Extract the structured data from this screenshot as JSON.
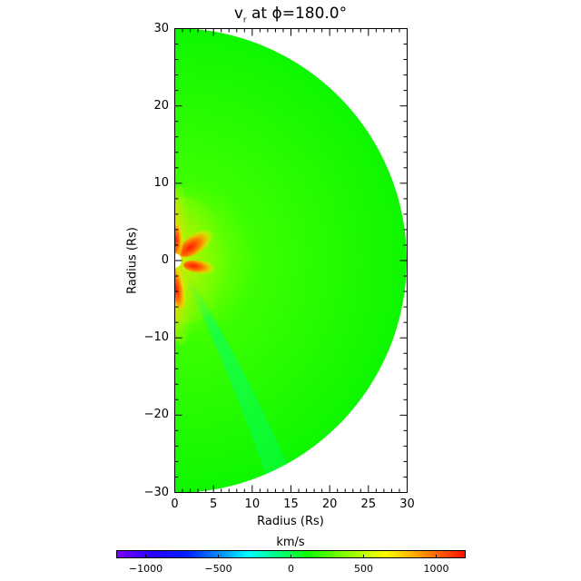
{
  "chart_data": {
    "type": "heatmap",
    "subtype": "polar-meridional-slice",
    "title": "v_r at φ=180.0°",
    "title_display": "vᵣ at ϕ=180.0°",
    "xlabel": "Radius (Rs)",
    "ylabel": "Radius (Rs)",
    "xlim": [
      0,
      30
    ],
    "ylim": [
      -30,
      30
    ],
    "x_ticks": [
      0,
      5,
      10,
      15,
      20,
      25,
      30
    ],
    "y_ticks": [
      -30,
      -20,
      -10,
      0,
      10,
      20,
      30
    ],
    "x_minor_tick_step": 1,
    "y_minor_tick_step": 2,
    "domain_shape": "half-disk, radius 30 Rs, centered at origin, right half",
    "inner_boundary_radius_rs": 1,
    "colorbar": {
      "label": "km/s",
      "range": [
        -1200,
        1200
      ],
      "ticks": [
        -1000,
        -500,
        0,
        500,
        1000
      ],
      "colormap": [
        "#7f00ff",
        "#0000ff",
        "#00ffff",
        "#00ff00",
        "#ffff00",
        "#ff0000"
      ],
      "orientation": "horizontal"
    },
    "features": [
      {
        "description": "background solar wind",
        "approx_value_kms": 200,
        "color": "#22ff00"
      },
      {
        "description": "high-speed lobe upper-left near Sun, r≈1-5 Rs, lat≈+30°",
        "approx_value_kms": 1100
      },
      {
        "description": "high-speed lobe equatorial, r≈1.5-4 Rs, just below equator",
        "approx_value_kms": 1100
      },
      {
        "description": "high-speed lobe along -y axis, r≈1-6 Rs",
        "approx_value_kms": 1000
      },
      {
        "description": "high-speed region along +y axis, r≈1-5 Rs",
        "approx_value_kms": 1000
      },
      {
        "description": "slower stream (cyan-green) from origin toward (~12,-30)",
        "approx_value_kms": 0
      }
    ]
  },
  "plot": {
    "title_base": "v",
    "title_sub": "r",
    "title_rest": " at ϕ=180.0°",
    "xlabel": "Radius (Rs)",
    "ylabel": "Radius (Rs)",
    "x_tick_labels": [
      "0",
      "5",
      "10",
      "15",
      "20",
      "25",
      "30"
    ],
    "y_tick_labels": [
      "30",
      "20",
      "10",
      "0",
      "−10",
      "−20",
      "−30"
    ],
    "colorbar_label": "km/s",
    "colorbar_tick_labels": [
      "−1000",
      "−500",
      "0",
      "500",
      "1000"
    ]
  }
}
